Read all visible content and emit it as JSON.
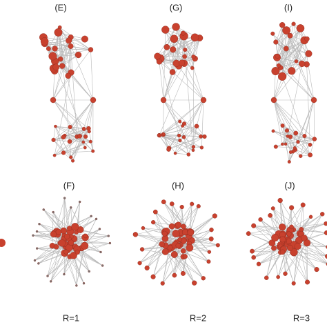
{
  "top_row": {
    "labels": [
      "(E)",
      "(G)",
      "(I)"
    ]
  },
  "bottom_row": {
    "labels": [
      "(F)",
      "(H)",
      "(J)"
    ]
  },
  "captions": [
    "R=1",
    "R=2",
    "R=3"
  ]
}
